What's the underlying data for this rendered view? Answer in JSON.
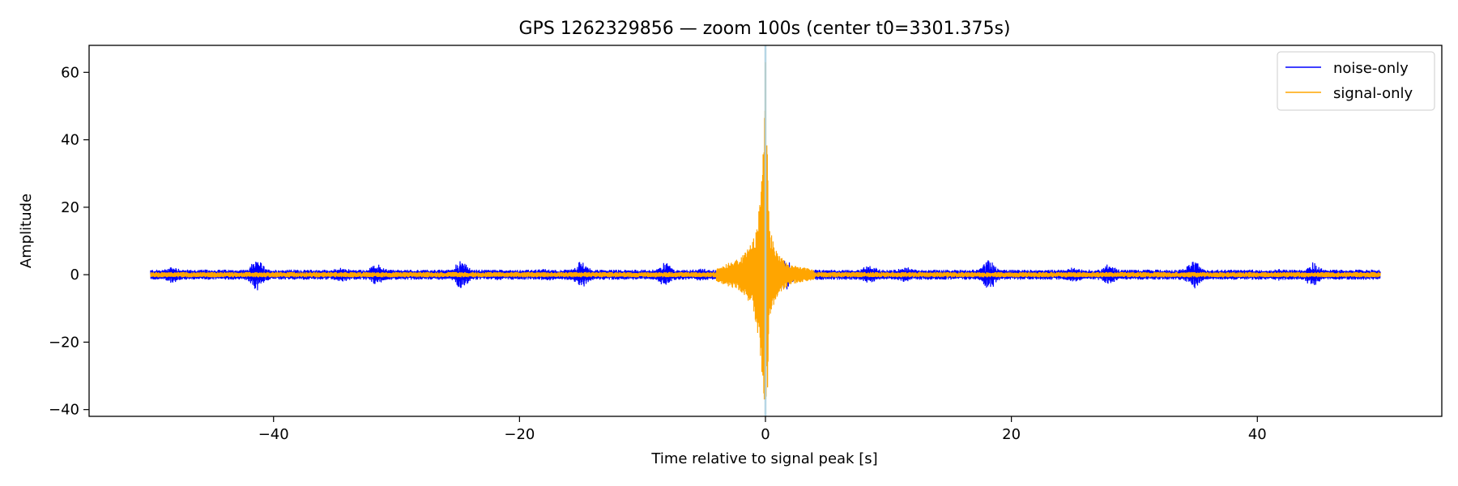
{
  "chart_data": {
    "type": "line",
    "title": "GPS 1262329856 — zoom 100s (center t0=3301.375s)",
    "xlabel": "Time relative to signal peak [s]",
    "ylabel": "Amplitude",
    "xlim": [
      -55,
      55
    ],
    "ylim": [
      -42,
      68
    ],
    "xticks": [
      -40,
      -20,
      0,
      20,
      40
    ],
    "xtick_labels": [
      "−40",
      "−20",
      "0",
      "20",
      "40"
    ],
    "yticks": [
      -40,
      -20,
      0,
      20,
      40,
      60
    ],
    "ytick_labels": [
      "−40",
      "−20",
      "0",
      "20",
      "40",
      "60"
    ],
    "grid": false,
    "legend_position": "top-right",
    "marker_line": {
      "x": 0,
      "color": "#a9cfe0"
    },
    "series": [
      {
        "name": "noise-only",
        "color": "#0000ff",
        "x_range": [
          -50,
          50
        ],
        "typical_amplitude": 1.5,
        "burst_amplitude": 3.5
      },
      {
        "name": "signal-only",
        "color": "#ffa500",
        "x_range": [
          -50,
          50
        ],
        "typical_amplitude": 0.8,
        "peak_x": 0,
        "peak_max": 63,
        "peak_min": -37,
        "envelope_points": [
          {
            "x": -4,
            "amp": 2
          },
          {
            "x": -2,
            "amp": 5
          },
          {
            "x": -1,
            "amp": 10
          },
          {
            "x": -0.5,
            "amp": 20
          },
          {
            "x": -0.3,
            "amp": 33
          },
          {
            "x": -0.2,
            "amp": 37
          },
          {
            "x": 0,
            "amp": 63
          },
          {
            "x": 0.3,
            "amp": 14
          },
          {
            "x": 1,
            "amp": 6
          },
          {
            "x": 2,
            "amp": 3
          },
          {
            "x": 4,
            "amp": 1.5
          }
        ]
      }
    ]
  }
}
